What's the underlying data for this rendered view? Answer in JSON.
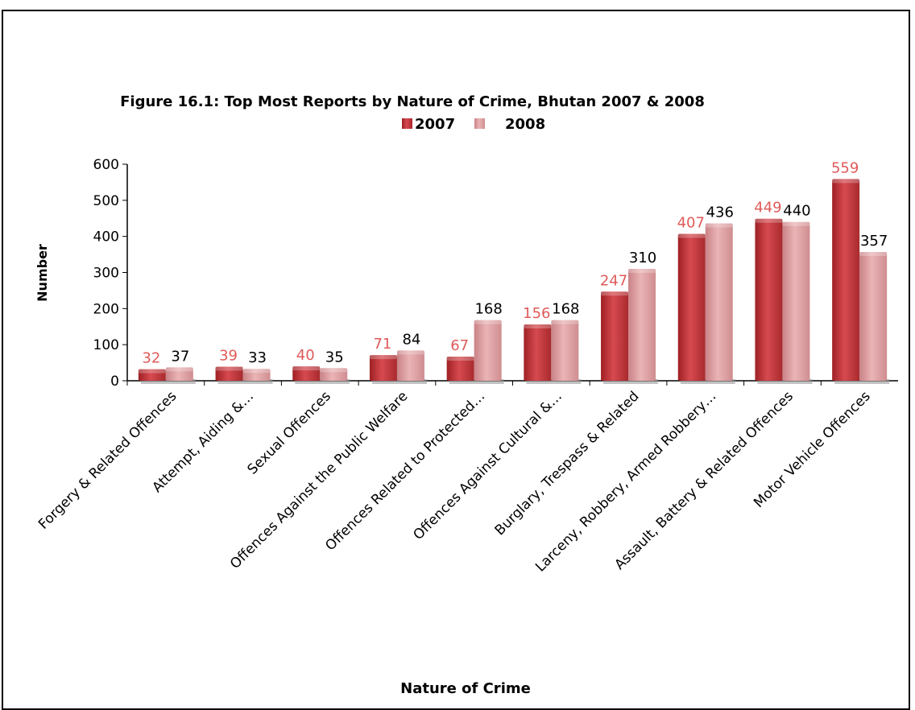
{
  "chart_data": {
    "type": "bar",
    "title": "Figure 16.1: Top Most Reports by Nature of Crime, Bhutan 2007 & 2008",
    "xlabel": "Nature of Crime",
    "ylabel": "Number",
    "ylim": [
      0,
      600
    ],
    "yticks": [
      "0",
      "100",
      "200",
      "300",
      "400",
      "500",
      "600"
    ],
    "legend_position": "top",
    "categories": [
      "Forgery & Related Offences",
      "Attempt, Aiding &…",
      "Sexual Offences",
      "Offences Against the Public Welfare",
      "Offences Related to Protected…",
      "Offences Against Cultural &…",
      "Burglary, Trespass & Related",
      "Larceny, Robbery, Armed Robbery…",
      "Assault, Battery & Related Offences",
      "Motor Vehicle Offences"
    ],
    "series": [
      {
        "name": "2007",
        "values": [
          32,
          39,
          40,
          71,
          67,
          156,
          247,
          407,
          449,
          559
        ],
        "color": "#c8353b",
        "label_color": "#e05a5a"
      },
      {
        "name": "2008",
        "values": [
          37,
          33,
          35,
          84,
          168,
          168,
          310,
          436,
          440,
          357
        ],
        "color": "#dc9a9d",
        "label_color": "#000000"
      }
    ]
  }
}
